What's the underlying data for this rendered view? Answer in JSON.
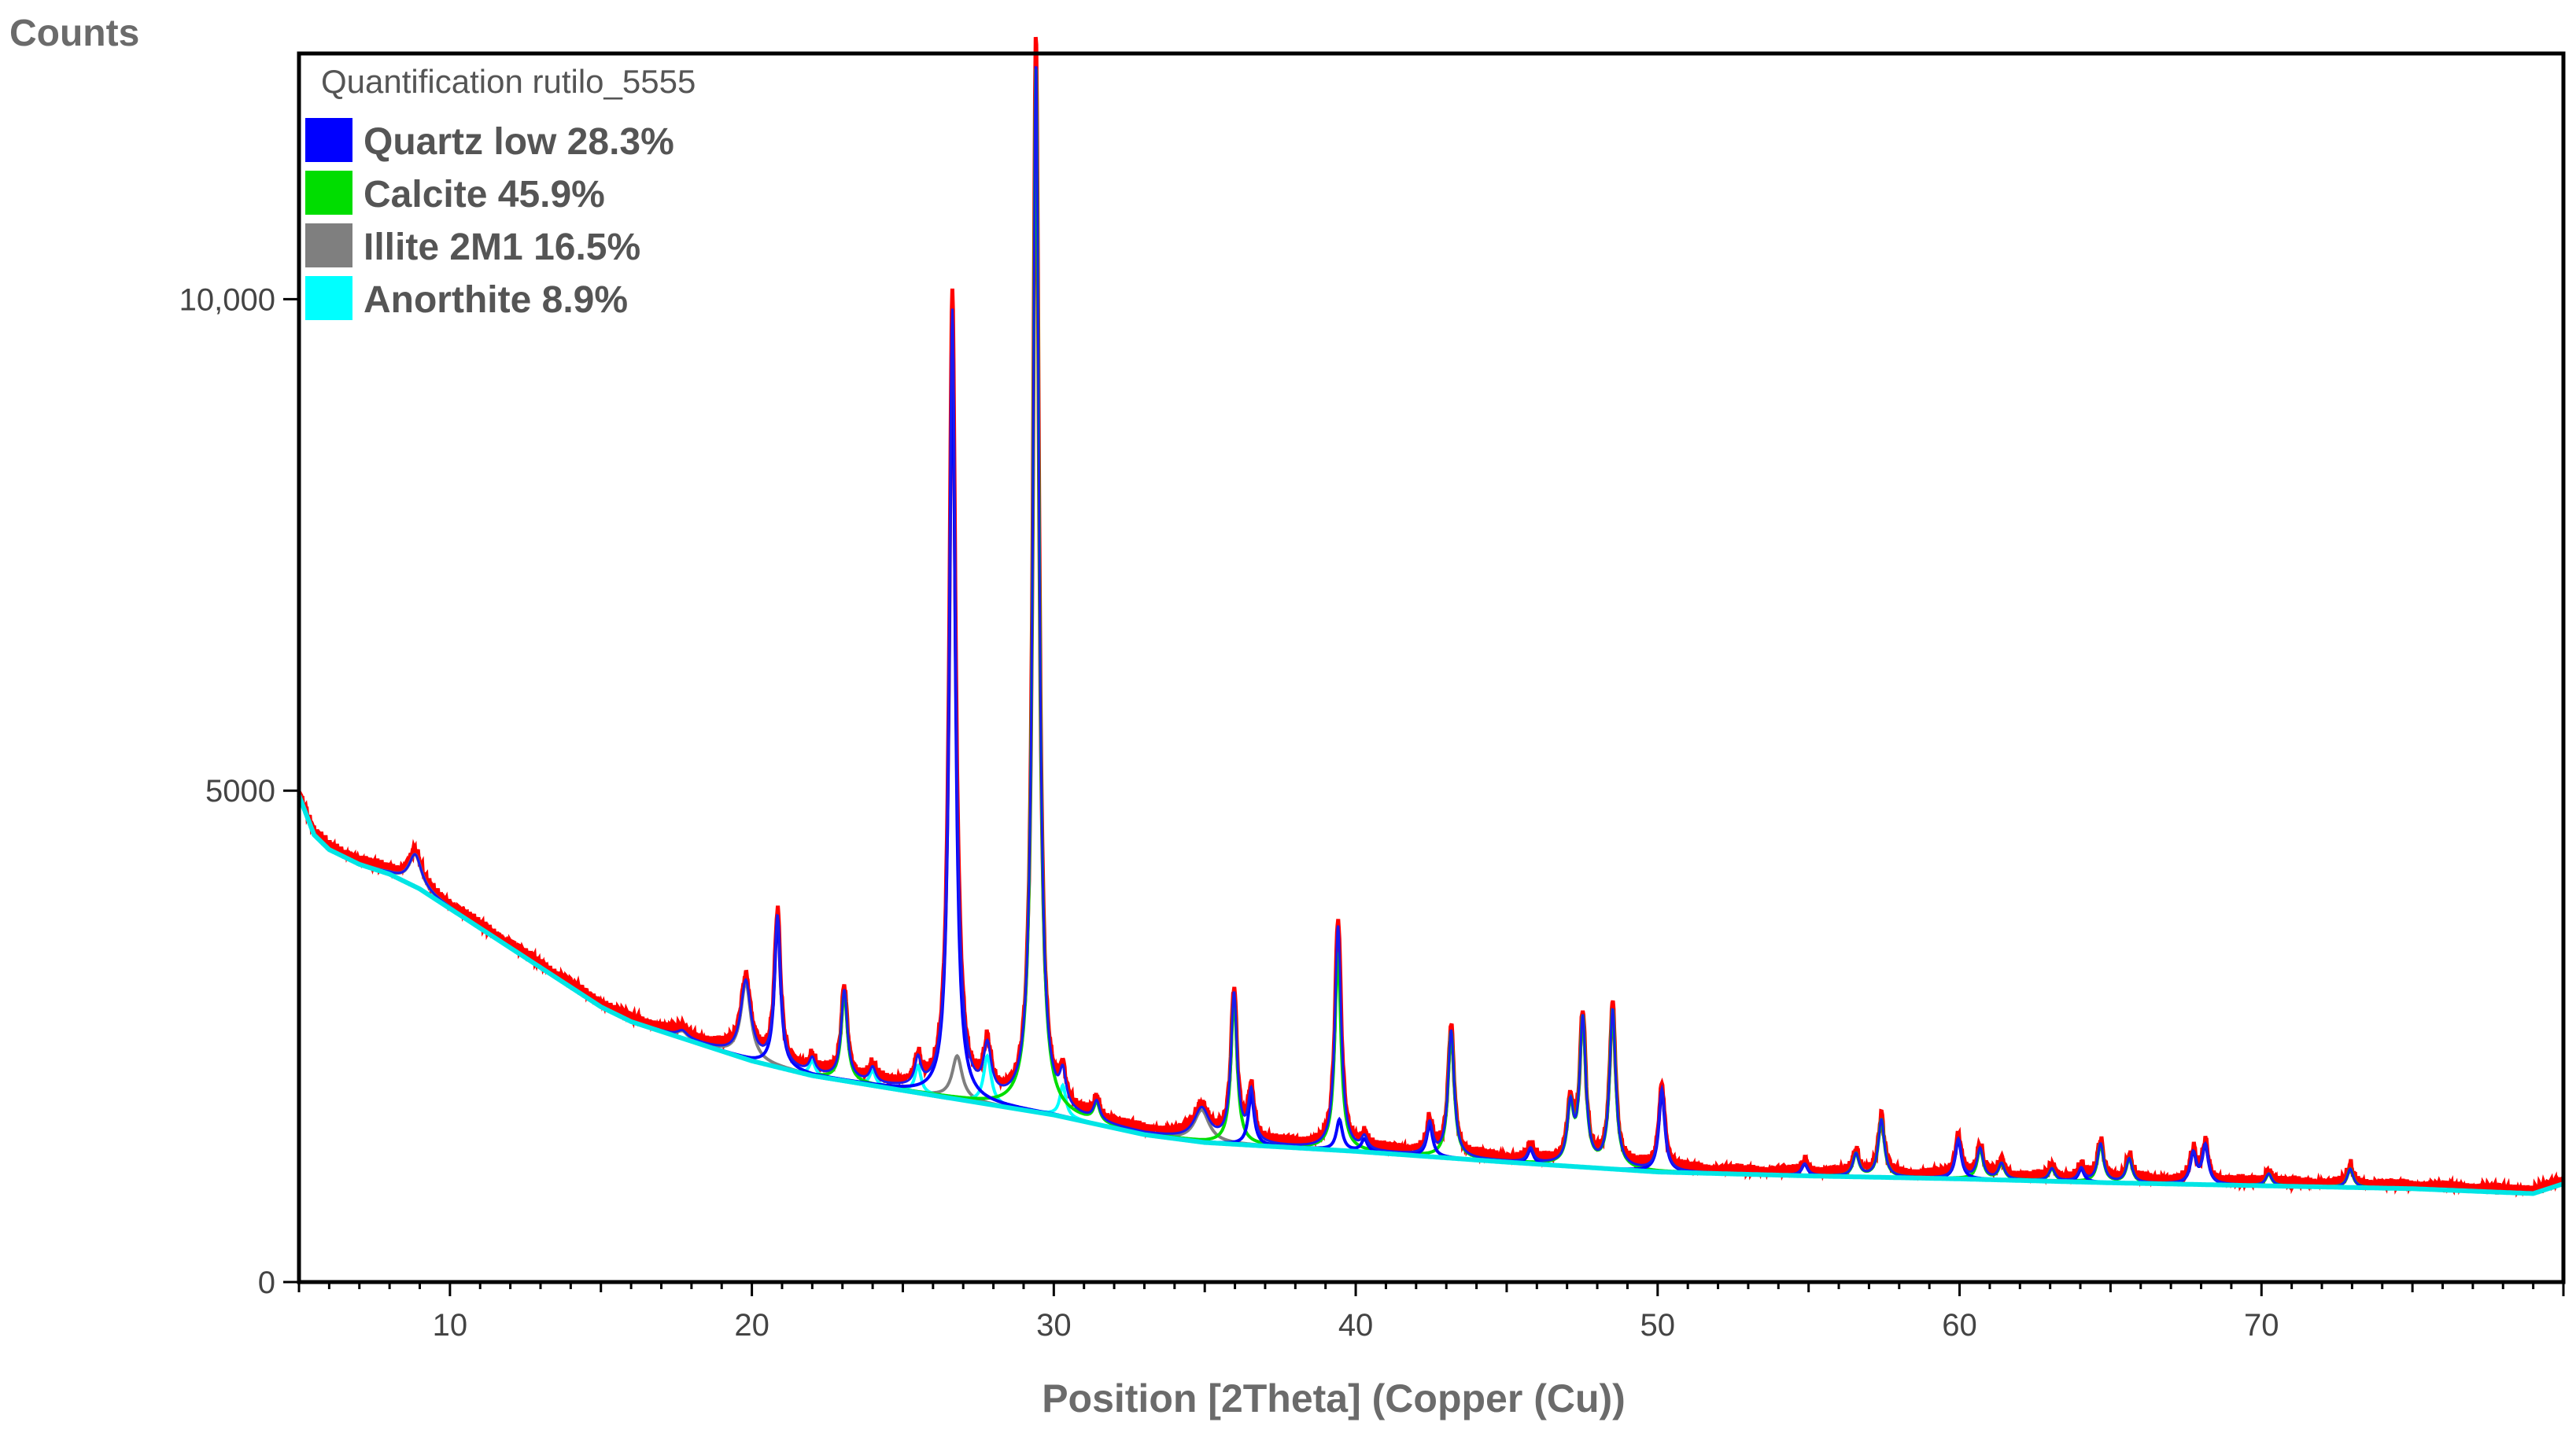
{
  "chart_data": {
    "type": "line",
    "ylabel": "Counts",
    "xlabel": "Position [2Theta] (Copper (Cu))",
    "legend_title": "Quantification rutilo_5555",
    "legend_position": "top-left",
    "xlim": [
      5,
      80
    ],
    "ylim": [
      0,
      12500
    ],
    "xticks": [
      10,
      20,
      30,
      40,
      50,
      60,
      70
    ],
    "yticks": [
      {
        "value": 0,
        "label": "0"
      },
      {
        "value": 5000,
        "label": "5000"
      },
      {
        "value": 10000,
        "label": "10,000"
      }
    ],
    "grid": false,
    "legend": [
      {
        "name": "Quartz low 28.3%",
        "color": "#0000ff"
      },
      {
        "name": "Calcite 45.9%",
        "color": "#00dd00"
      },
      {
        "name": "Illite 2M1 16.5%",
        "color": "#7f7f7f"
      },
      {
        "name": "Anorthite 8.9%",
        "color": "#00ffff"
      }
    ],
    "observed_color": "#ff0000",
    "background": [
      [
        5,
        4950
      ],
      [
        5.5,
        4550
      ],
      [
        6,
        4400
      ],
      [
        7,
        4250
      ],
      [
        8,
        4150
      ],
      [
        9,
        4000
      ],
      [
        10,
        3800
      ],
      [
        11,
        3600
      ],
      [
        12,
        3400
      ],
      [
        13,
        3200
      ],
      [
        14,
        3000
      ],
      [
        15,
        2800
      ],
      [
        16,
        2650
      ],
      [
        18,
        2450
      ],
      [
        20,
        2250
      ],
      [
        22,
        2100
      ],
      [
        25,
        1950
      ],
      [
        28,
        1800
      ],
      [
        30,
        1700
      ],
      [
        33,
        1500
      ],
      [
        35,
        1420
      ],
      [
        40,
        1330
      ],
      [
        45,
        1220
      ],
      [
        50,
        1120
      ],
      [
        55,
        1080
      ],
      [
        60,
        1050
      ],
      [
        65,
        1010
      ],
      [
        70,
        980
      ],
      [
        75,
        950
      ],
      [
        79,
        900
      ],
      [
        80,
        1000
      ]
    ],
    "peaks": [
      {
        "phase": "Quartz low",
        "x": 20.85,
        "y": 3700,
        "width": 0.12
      },
      {
        "phase": "Quartz low",
        "x": 26.64,
        "y": 9600,
        "width": 0.12
      },
      {
        "phase": "Quartz low",
        "x": 36.54,
        "y": 1900,
        "width": 0.12
      },
      {
        "phase": "Quartz low",
        "x": 39.46,
        "y": 1650,
        "width": 0.12
      },
      {
        "phase": "Quartz low",
        "x": 40.29,
        "y": 1450,
        "width": 0.12
      },
      {
        "phase": "Quartz low",
        "x": 42.45,
        "y": 1600,
        "width": 0.12
      },
      {
        "phase": "Quartz low",
        "x": 45.79,
        "y": 1350,
        "width": 0.12
      },
      {
        "phase": "Quartz low",
        "x": 50.14,
        "y": 1950,
        "width": 0.12
      },
      {
        "phase": "Quartz low",
        "x": 54.87,
        "y": 1200,
        "width": 0.12
      },
      {
        "phase": "Quartz low",
        "x": 59.96,
        "y": 1450,
        "width": 0.12
      },
      {
        "phase": "Quartz low",
        "x": 64.03,
        "y": 1150,
        "width": 0.12
      },
      {
        "phase": "Quartz low",
        "x": 67.74,
        "y": 1300,
        "width": 0.12
      },
      {
        "phase": "Quartz low",
        "x": 68.14,
        "y": 1380,
        "width": 0.12
      },
      {
        "phase": "Calcite",
        "x": 23.06,
        "y": 2950,
        "width": 0.12
      },
      {
        "phase": "Calcite",
        "x": 29.41,
        "y": 12400,
        "width": 0.12
      },
      {
        "phase": "Calcite",
        "x": 31.42,
        "y": 1800,
        "width": 0.12
      },
      {
        "phase": "Calcite",
        "x": 35.97,
        "y": 2900,
        "width": 0.12
      },
      {
        "phase": "Calcite",
        "x": 39.41,
        "y": 3350,
        "width": 0.12
      },
      {
        "phase": "Calcite",
        "x": 43.16,
        "y": 2550,
        "width": 0.12
      },
      {
        "phase": "Calcite",
        "x": 47.11,
        "y": 1750,
        "width": 0.12
      },
      {
        "phase": "Calcite",
        "x": 47.52,
        "y": 2650,
        "width": 0.12
      },
      {
        "phase": "Calcite",
        "x": 48.51,
        "y": 2750,
        "width": 0.12
      },
      {
        "phase": "Calcite",
        "x": 56.57,
        "y": 1300,
        "width": 0.12
      },
      {
        "phase": "Calcite",
        "x": 57.41,
        "y": 1650,
        "width": 0.12
      },
      {
        "phase": "Calcite",
        "x": 60.68,
        "y": 1350,
        "width": 0.12
      },
      {
        "phase": "Calcite",
        "x": 61.39,
        "y": 1200,
        "width": 0.12
      },
      {
        "phase": "Calcite",
        "x": 63.06,
        "y": 1150,
        "width": 0.12
      },
      {
        "phase": "Calcite",
        "x": 64.67,
        "y": 1400,
        "width": 0.12
      },
      {
        "phase": "Calcite",
        "x": 65.62,
        "y": 1250,
        "width": 0.12
      },
      {
        "phase": "Calcite",
        "x": 70.24,
        "y": 1100,
        "width": 0.12
      },
      {
        "phase": "Calcite",
        "x": 72.94,
        "y": 1150,
        "width": 0.12
      },
      {
        "phase": "Illite 2M1",
        "x": 8.85,
        "y": 4350,
        "width": 0.25
      },
      {
        "phase": "Illite 2M1",
        "x": 17.7,
        "y": 2550,
        "width": 0.2
      },
      {
        "phase": "Illite 2M1",
        "x": 19.8,
        "y": 3050,
        "width": 0.2
      },
      {
        "phase": "Illite 2M1",
        "x": 26.8,
        "y": 2300,
        "width": 0.2
      },
      {
        "phase": "Illite 2M1",
        "x": 34.9,
        "y": 1750,
        "width": 0.3
      },
      {
        "phase": "Anorthite",
        "x": 22.0,
        "y": 2250,
        "width": 0.12
      },
      {
        "phase": "Anorthite",
        "x": 24.0,
        "y": 2150,
        "width": 0.12
      },
      {
        "phase": "Anorthite",
        "x": 25.5,
        "y": 2200,
        "width": 0.12
      },
      {
        "phase": "Anorthite",
        "x": 27.8,
        "y": 2300,
        "width": 0.15
      },
      {
        "phase": "Anorthite",
        "x": 30.3,
        "y": 2000,
        "width": 0.12
      }
    ]
  }
}
